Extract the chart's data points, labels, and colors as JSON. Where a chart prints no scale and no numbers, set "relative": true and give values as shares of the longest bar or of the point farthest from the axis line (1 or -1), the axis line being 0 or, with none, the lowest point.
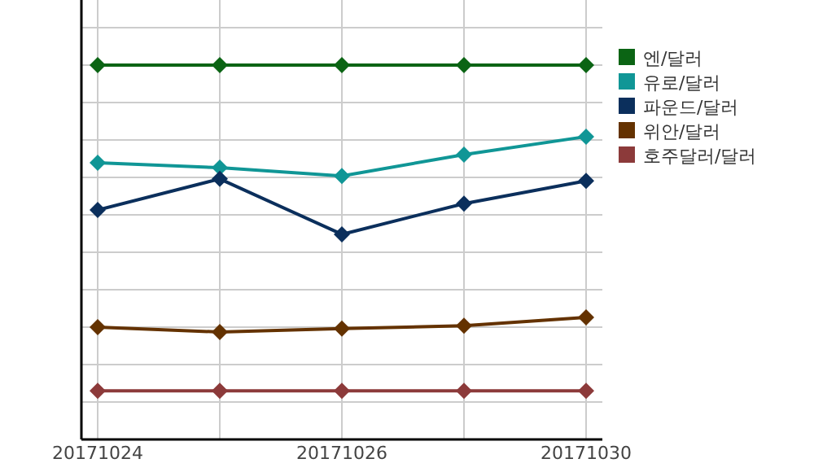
{
  "chart_data": {
    "type": "line",
    "relative": true,
    "categories": [
      "20171024",
      null,
      "20171026",
      null,
      "20171030"
    ],
    "series": [
      {
        "name": "엔/달러",
        "color": "#0b6414",
        "values": [
          1,
          1,
          1,
          1,
          1
        ]
      },
      {
        "name": "유로/달러",
        "color": "#109696",
        "values": [
          0.739,
          0.726,
          0.704,
          0.761,
          0.809
        ]
      },
      {
        "name": "파운드/달러",
        "color": "#0b2f5c",
        "values": [
          0.613,
          0.696,
          0.548,
          0.63,
          0.691
        ]
      },
      {
        "name": "위안/달러",
        "color": "#643200",
        "values": [
          0.3,
          0.287,
          0.296,
          0.304,
          0.326
        ]
      },
      {
        "name": "호주달러/달러",
        "color": "#8c3a3a",
        "values": [
          0.13,
          0.13,
          0.13,
          0.13,
          0.13
        ]
      }
    ],
    "legend": "right",
    "marker": "diamond",
    "grid": true
  }
}
